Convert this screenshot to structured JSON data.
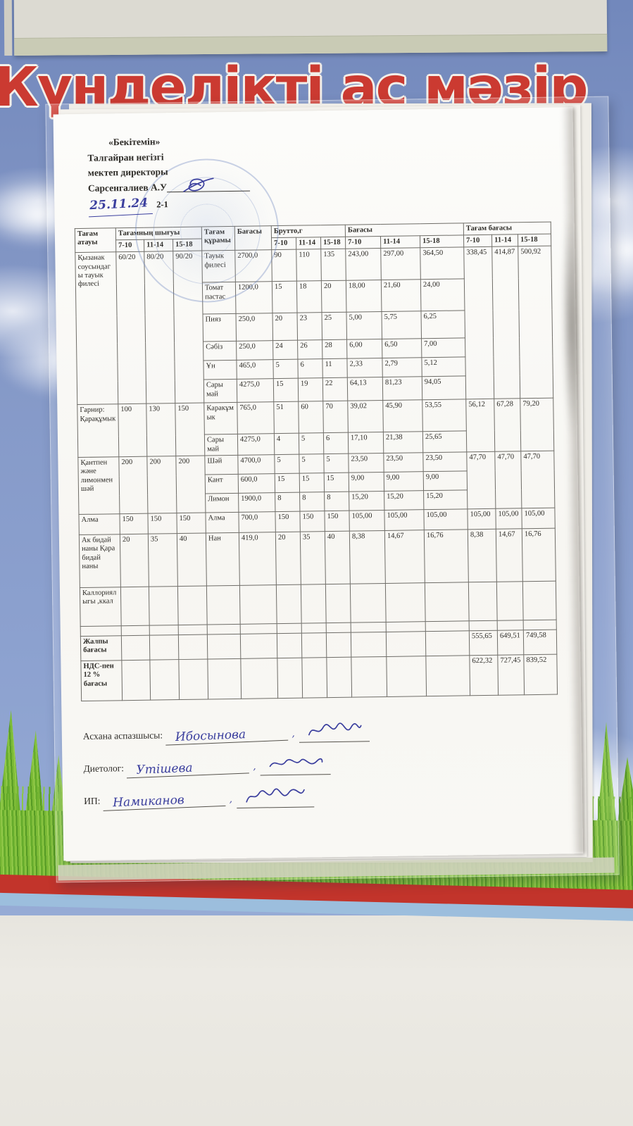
{
  "board": {
    "title": "Күнделікті ас мәзір",
    "colors": {
      "title_red": "#cb3a31",
      "sky_blue": "#8296c5",
      "grass_green": "#7cbb37",
      "stripe_red": "#c2342b",
      "stripe_blue": "#9cbedd",
      "ink_blue": "#3b3f9e"
    }
  },
  "document": {
    "approval_line1": "«Бекітемін»",
    "approval_line2": "Талгайран негізгі",
    "approval_line3": "мектеп директоры",
    "approval_name": "Сарсенгалиев А.У",
    "date": "25.11.24",
    "class_code": "2-1"
  },
  "table": {
    "rows": [
      {
        "h": 1,
        "c": [
          {
            "t": "Тағам атауы",
            "rs": 2
          },
          {
            "t": "Тағамның шығуы",
            "cs": 3
          },
          {
            "t": "Тағам құрамы",
            "rs": 2
          },
          {
            "t": "Бағасы",
            "rs": 2
          },
          {
            "t": "Брутто,г",
            "cs": 3
          },
          {
            "t": "Бағасы",
            "cs": 3
          },
          {
            "t": "Тағам бағасы",
            "cs": 3
          }
        ]
      },
      {
        "h": 1,
        "c": [
          {
            "t": "7-10"
          },
          {
            "t": "11-14"
          },
          {
            "t": "15-18"
          },
          {
            "t": "7-10"
          },
          {
            "t": "11-14"
          },
          {
            "t": "15-18"
          },
          {
            "t": "7-10"
          },
          {
            "t": "11-14"
          },
          {
            "t": "15-18"
          },
          {
            "t": "7-10"
          },
          {
            "t": "11-14"
          },
          {
            "t": "15-18"
          }
        ]
      },
      {
        "cl": "h40",
        "c": [
          {
            "t": "Қызанак соусындагы тауык филесі",
            "rs": 6
          },
          {
            "t": "60/20",
            "rs": 6
          },
          {
            "t": "80/20",
            "rs": 6
          },
          {
            "t": "90/20",
            "rs": 6
          },
          {
            "t": "Тауык филесі"
          },
          {
            "t": "2700,0"
          },
          {
            "t": "90"
          },
          {
            "t": "110"
          },
          {
            "t": "135"
          },
          {
            "t": "243,00"
          },
          {
            "t": "297,00"
          },
          {
            "t": "364,50"
          },
          {
            "t": "338,45",
            "rs": 6
          },
          {
            "t": "414,87",
            "rs": 6
          },
          {
            "t": "500,92",
            "rs": 6
          }
        ]
      },
      {
        "cl": "h40",
        "c": [
          {
            "t": "Томат пастас"
          },
          {
            "t": "1200,0"
          },
          {
            "t": "15"
          },
          {
            "t": "18"
          },
          {
            "t": "20"
          },
          {
            "t": "18,00"
          },
          {
            "t": "21,60"
          },
          {
            "t": "24,00"
          }
        ]
      },
      {
        "cl": "h34",
        "c": [
          {
            "t": "Пияз"
          },
          {
            "t": "250,0"
          },
          {
            "t": "20"
          },
          {
            "t": "23"
          },
          {
            "t": "25"
          },
          {
            "t": "5,00"
          },
          {
            "t": "5,75"
          },
          {
            "t": "6,25"
          }
        ]
      },
      {
        "cl": "h22",
        "c": [
          {
            "t": "Сәбіз"
          },
          {
            "t": "250,0"
          },
          {
            "t": "24"
          },
          {
            "t": "26"
          },
          {
            "t": "28"
          },
          {
            "t": "6,00"
          },
          {
            "t": "6,50"
          },
          {
            "t": "7,00"
          }
        ]
      },
      {
        "cl": "h22",
        "c": [
          {
            "t": "Ұн"
          },
          {
            "t": "465,0"
          },
          {
            "t": "5"
          },
          {
            "t": "6"
          },
          {
            "t": "11"
          },
          {
            "t": "2,33"
          },
          {
            "t": "2,79"
          },
          {
            "t": "5,12"
          }
        ]
      },
      {
        "cl": "h28",
        "c": [
          {
            "t": "Сары май"
          },
          {
            "t": "4275,0"
          },
          {
            "t": "15"
          },
          {
            "t": "19"
          },
          {
            "t": "22"
          },
          {
            "t": "64,13"
          },
          {
            "t": "81,23"
          },
          {
            "t": "94,05"
          }
        ]
      },
      {
        "cl": "h40",
        "c": [
          {
            "t": "Гарнир: Қарақұмык",
            "rs": 2
          },
          {
            "t": "100",
            "rs": 2
          },
          {
            "t": "130",
            "rs": 2
          },
          {
            "t": "150",
            "rs": 2
          },
          {
            "t": "Каракұмык"
          },
          {
            "t": "765,0"
          },
          {
            "t": "51"
          },
          {
            "t": "60"
          },
          {
            "t": "70"
          },
          {
            "t": "39,02"
          },
          {
            "t": "45,90"
          },
          {
            "t": "53,55"
          },
          {
            "t": "56,12",
            "rs": 2
          },
          {
            "t": "67,28",
            "rs": 2
          },
          {
            "t": "79,20",
            "rs": 2
          }
        ]
      },
      {
        "cl": "h24",
        "c": [
          {
            "t": "Сары май"
          },
          {
            "t": "4275,0"
          },
          {
            "t": "4"
          },
          {
            "t": "5"
          },
          {
            "t": "6"
          },
          {
            "t": "17,10"
          },
          {
            "t": "21,38"
          },
          {
            "t": "25,65"
          }
        ]
      },
      {
        "cl": "h22",
        "c": [
          {
            "t": "Қантпен және лимонмен шәй",
            "rs": 3
          },
          {
            "t": "200",
            "rs": 3
          },
          {
            "t": "200",
            "rs": 3
          },
          {
            "t": "200",
            "rs": 3
          },
          {
            "t": "Шәй"
          },
          {
            "t": "4700,0"
          },
          {
            "t": "5"
          },
          {
            "t": "5"
          },
          {
            "t": "5"
          },
          {
            "t": "23,50"
          },
          {
            "t": "23,50"
          },
          {
            "t": "23,50"
          },
          {
            "t": "47,70",
            "rs": 3
          },
          {
            "t": "47,70",
            "rs": 3
          },
          {
            "t": "47,70",
            "rs": 3
          }
        ]
      },
      {
        "cl": "h22",
        "c": [
          {
            "t": "Кант"
          },
          {
            "t": "600,0"
          },
          {
            "t": "15"
          },
          {
            "t": "15"
          },
          {
            "t": "15"
          },
          {
            "t": "9,00"
          },
          {
            "t": "9,00"
          },
          {
            "t": "9,00"
          }
        ]
      },
      {
        "cl": "h22",
        "c": [
          {
            "t": "Лимон"
          },
          {
            "t": "1900,0"
          },
          {
            "t": "8"
          },
          {
            "t": "8"
          },
          {
            "t": "8"
          },
          {
            "t": "15,20"
          },
          {
            "t": "15,20"
          },
          {
            "t": "15,20"
          }
        ]
      },
      {
        "cl": "h24",
        "c": [
          {
            "t": "Алма"
          },
          {
            "t": "150"
          },
          {
            "t": "150"
          },
          {
            "t": "150"
          },
          {
            "t": "Алма"
          },
          {
            "t": "700,0"
          },
          {
            "t": "150"
          },
          {
            "t": "150"
          },
          {
            "t": "150"
          },
          {
            "t": "105,00"
          },
          {
            "t": "105,00"
          },
          {
            "t": "105,00"
          },
          {
            "t": "105,00"
          },
          {
            "t": "105,00"
          },
          {
            "t": "105,00"
          }
        ]
      },
      {
        "cl": "h70",
        "c": [
          {
            "t": "Ак бидай наны Қара бидай наны"
          },
          {
            "t": "20"
          },
          {
            "t": "35"
          },
          {
            "t": "40"
          },
          {
            "t": "Нан"
          },
          {
            "t": "419,0"
          },
          {
            "t": "20"
          },
          {
            "t": "35"
          },
          {
            "t": "40"
          },
          {
            "t": "8,38"
          },
          {
            "t": "14,67"
          },
          {
            "t": "16,76"
          },
          {
            "t": "8,38"
          },
          {
            "t": "14,67"
          },
          {
            "t": "16,76"
          }
        ]
      },
      {
        "cl": "h50",
        "c": [
          {
            "t": "Каллориялыгы ,ккал"
          },
          {
            "t": ""
          },
          {
            "t": ""
          },
          {
            "t": ""
          },
          {
            "t": ""
          },
          {
            "t": ""
          },
          {
            "t": ""
          },
          {
            "t": ""
          },
          {
            "t": ""
          },
          {
            "t": ""
          },
          {
            "t": ""
          },
          {
            "t": ""
          },
          {
            "t": ""
          },
          {
            "t": ""
          },
          {
            "t": ""
          }
        ]
      },
      {
        "cl": "h10",
        "c": [
          {
            "t": ""
          },
          {
            "t": ""
          },
          {
            "t": ""
          },
          {
            "t": ""
          },
          {
            "t": ""
          },
          {
            "t": ""
          },
          {
            "t": ""
          },
          {
            "t": ""
          },
          {
            "t": ""
          },
          {
            "t": ""
          },
          {
            "t": ""
          },
          {
            "t": ""
          },
          {
            "t": ""
          },
          {
            "t": ""
          },
          {
            "t": ""
          }
        ]
      },
      {
        "cl": "h30",
        "c": [
          {
            "t": "Жалпы бағасы",
            "cl": "b"
          },
          {
            "t": ""
          },
          {
            "t": ""
          },
          {
            "t": ""
          },
          {
            "t": ""
          },
          {
            "t": ""
          },
          {
            "t": ""
          },
          {
            "t": ""
          },
          {
            "t": ""
          },
          {
            "t": ""
          },
          {
            "t": ""
          },
          {
            "t": ""
          },
          {
            "t": "555,65"
          },
          {
            "t": "649,51"
          },
          {
            "t": "749,58"
          }
        ]
      },
      {
        "cl": "h52",
        "c": [
          {
            "t": "НДС-пен 12 % бағасы",
            "cl": "b"
          },
          {
            "t": ""
          },
          {
            "t": ""
          },
          {
            "t": ""
          },
          {
            "t": ""
          },
          {
            "t": ""
          },
          {
            "t": ""
          },
          {
            "t": ""
          },
          {
            "t": ""
          },
          {
            "t": ""
          },
          {
            "t": ""
          },
          {
            "t": ""
          },
          {
            "t": "622,32"
          },
          {
            "t": "727,45"
          },
          {
            "t": "839,52"
          }
        ]
      }
    ]
  },
  "signatures": [
    {
      "label": "Асхана аспазшысы:",
      "name": "Ибосынова"
    },
    {
      "label": "Диетолог:",
      "name": "Утішева"
    },
    {
      "label": "ИП:",
      "name": "Намиканов"
    }
  ]
}
